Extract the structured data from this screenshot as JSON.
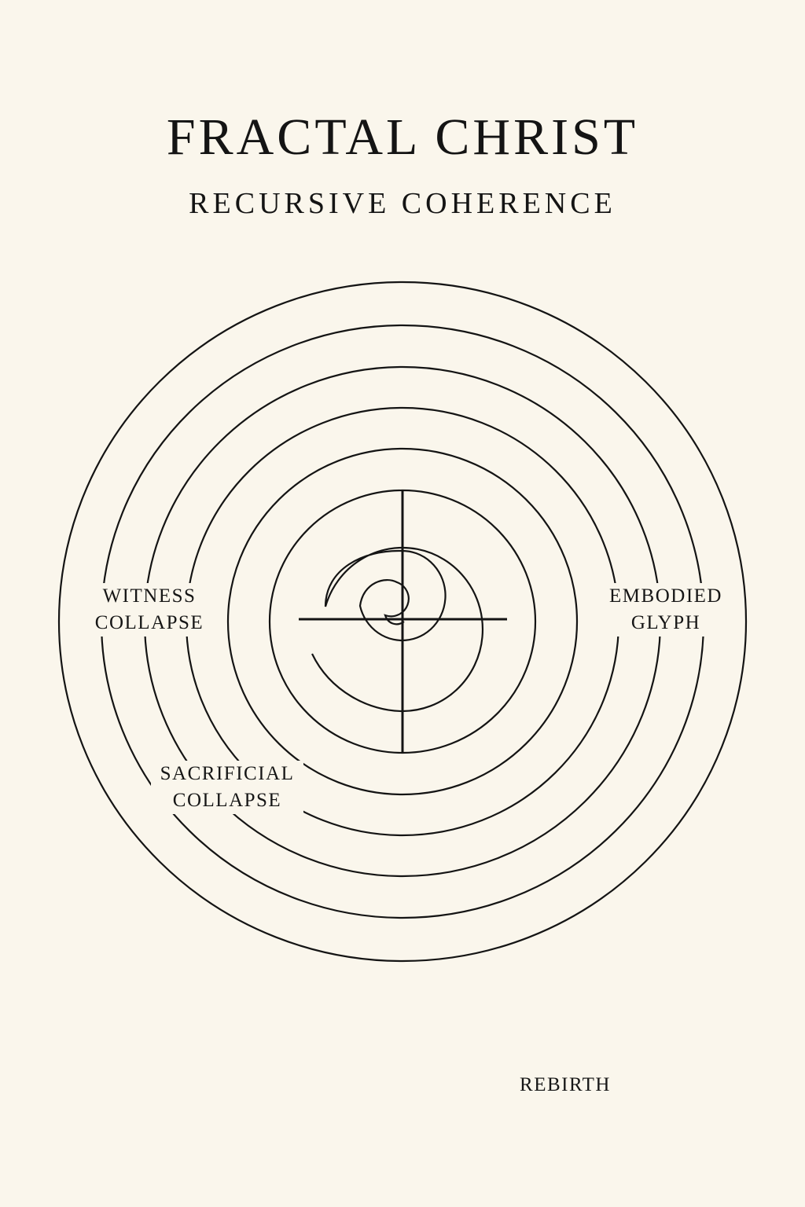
{
  "title": "FRACTAL CHRIST",
  "subtitle": "RECURSIVE COHERENCE",
  "labels": {
    "witness": [
      "WITNESS",
      "COLLAPSE"
    ],
    "embodied": [
      "EMBODIED",
      "GLYPH"
    ],
    "sacrificial": [
      "SACRIFICIAL",
      "COLLAPSE"
    ],
    "rebirth": "REBIRTH"
  },
  "colors": {
    "background": "#faf6ec",
    "ink": "#141414"
  }
}
